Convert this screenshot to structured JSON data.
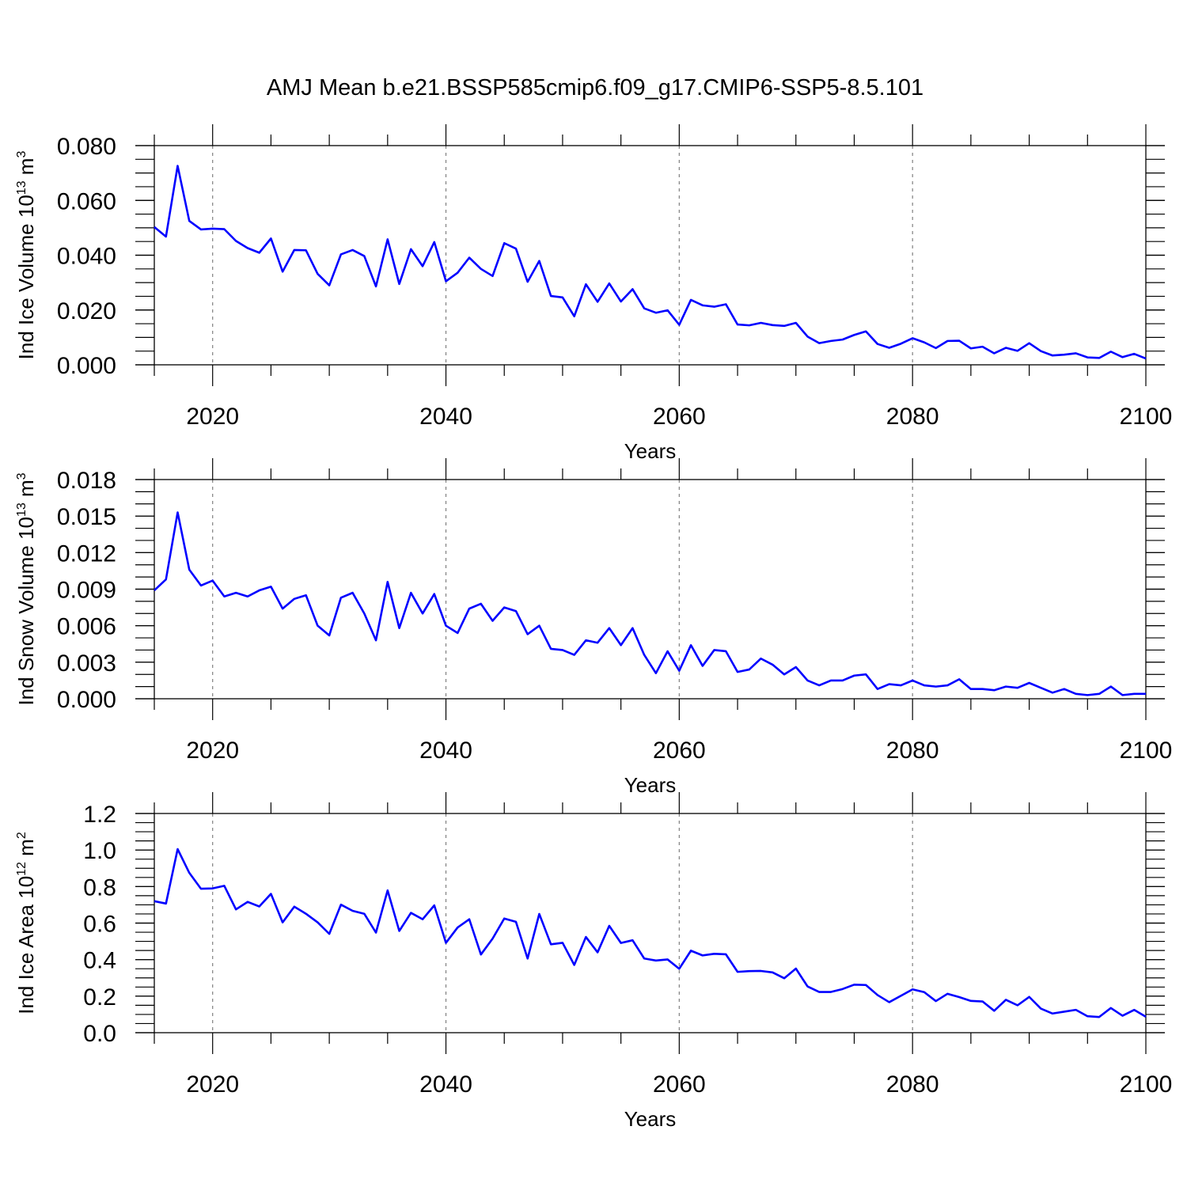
{
  "title": "AMJ Mean b.e21.BSSP585cmip6.f09_g17.CMIP6-SSP5-8.5.101",
  "line_color": "#0000ff",
  "chart_data": [
    {
      "type": "line",
      "ylabel": "Ind Ice Volume 10",
      "ylabel_sup": "13",
      "ylabel_unit": " m",
      "ylabel_unit_sup": "3",
      "xlabel": "Years",
      "xlim": [
        2015,
        2100
      ],
      "ylim": [
        0.0,
        0.08
      ],
      "x_ticks": [
        2020,
        2040,
        2060,
        2080,
        2100
      ],
      "x_tick_labels": [
        "2020",
        "2040",
        "2060",
        "2080",
        "2100"
      ],
      "y_ticks": [
        0.0,
        0.02,
        0.04,
        0.06,
        0.08
      ],
      "y_tick_labels": [
        "0.000",
        "0.020",
        "0.040",
        "0.060",
        "0.080"
      ],
      "y_minor_step": 0.005,
      "series": [
        {
          "x_start": 2015,
          "values": [
            0.0503,
            0.0468,
            0.0726,
            0.0525,
            0.0494,
            0.0497,
            0.0495,
            0.0452,
            0.0426,
            0.0409,
            0.0461,
            0.034,
            0.0419,
            0.0418,
            0.0332,
            0.029,
            0.0403,
            0.0419,
            0.0397,
            0.0286,
            0.0458,
            0.0295,
            0.0422,
            0.036,
            0.0448,
            0.0305,
            0.0336,
            0.0391,
            0.035,
            0.0324,
            0.0444,
            0.0424,
            0.0303,
            0.0379,
            0.0251,
            0.0246,
            0.0177,
            0.0294,
            0.023,
            0.0297,
            0.0231,
            0.0276,
            0.0206,
            0.019,
            0.0199,
            0.0146,
            0.0237,
            0.0217,
            0.0212,
            0.0221,
            0.0147,
            0.0144,
            0.0153,
            0.0145,
            0.0142,
            0.0153,
            0.0103,
            0.0079,
            0.0087,
            0.0092,
            0.0109,
            0.0122,
            0.0076,
            0.0062,
            0.0077,
            0.0097,
            0.0082,
            0.0061,
            0.0087,
            0.0088,
            0.006,
            0.0066,
            0.0042,
            0.0062,
            0.0051,
            0.0079,
            0.005,
            0.0034,
            0.0037,
            0.0042,
            0.0027,
            0.0025,
            0.0048,
            0.0028,
            0.004,
            0.0023
          ]
        }
      ]
    },
    {
      "type": "line",
      "ylabel": "Ind Snow Volume 10",
      "ylabel_sup": "13",
      "ylabel_unit": " m",
      "ylabel_unit_sup": "3",
      "xlabel": "Years",
      "xlim": [
        2015,
        2100
      ],
      "ylim": [
        0.0,
        0.018
      ],
      "x_ticks": [
        2020,
        2040,
        2060,
        2080,
        2100
      ],
      "x_tick_labels": [
        "2020",
        "2040",
        "2060",
        "2080",
        "2100"
      ],
      "y_ticks": [
        0.0,
        0.003,
        0.006,
        0.009,
        0.012,
        0.015,
        0.018
      ],
      "y_tick_labels": [
        "0.000",
        "0.003",
        "0.006",
        "0.009",
        "0.012",
        "0.015",
        "0.018"
      ],
      "y_minor_step": 0.001,
      "series": [
        {
          "x_start": 2015,
          "values": [
            0.0089,
            0.0098,
            0.0153,
            0.0106,
            0.0093,
            0.0097,
            0.0084,
            0.0087,
            0.0084,
            0.0089,
            0.0092,
            0.0074,
            0.0082,
            0.0085,
            0.006,
            0.0052,
            0.0083,
            0.0087,
            0.007,
            0.0048,
            0.0096,
            0.0058,
            0.0087,
            0.007,
            0.0086,
            0.006,
            0.0054,
            0.0074,
            0.0078,
            0.0064,
            0.0075,
            0.0072,
            0.0053,
            0.006,
            0.0041,
            0.004,
            0.0036,
            0.0048,
            0.0046,
            0.0058,
            0.0044,
            0.0058,
            0.0036,
            0.0021,
            0.0039,
            0.0023,
            0.0044,
            0.0027,
            0.004,
            0.0039,
            0.0022,
            0.0024,
            0.0033,
            0.0028,
            0.002,
            0.0026,
            0.0015,
            0.0011,
            0.0015,
            0.0015,
            0.0019,
            0.002,
            0.0008,
            0.0012,
            0.0011,
            0.0015,
            0.0011,
            0.001,
            0.0011,
            0.0016,
            0.0008,
            0.0008,
            0.0007,
            0.001,
            0.0009,
            0.0013,
            0.0009,
            0.0005,
            0.0008,
            0.0004,
            0.0003,
            0.0004,
            0.001,
            0.0003,
            0.0004,
            0.0004
          ]
        }
      ]
    },
    {
      "type": "line",
      "ylabel": "Ind Ice Area 10",
      "ylabel_sup": "12",
      "ylabel_unit": " m",
      "ylabel_unit_sup": "2",
      "xlabel": "Years",
      "xlim": [
        2015,
        2100
      ],
      "ylim": [
        0.0,
        1.2
      ],
      "x_ticks": [
        2020,
        2040,
        2060,
        2080,
        2100
      ],
      "x_tick_labels": [
        "2020",
        "2040",
        "2060",
        "2080",
        "2100"
      ],
      "y_ticks": [
        0.0,
        0.2,
        0.4,
        0.6,
        0.8,
        1.0,
        1.2
      ],
      "y_tick_labels": [
        "0.0",
        "0.2",
        "0.4",
        "0.6",
        "0.8",
        "1.0",
        "1.2"
      ],
      "y_minor_step": 0.05,
      "series": [
        {
          "x_start": 2015,
          "values": [
            0.72,
            0.707,
            1.005,
            0.875,
            0.788,
            0.79,
            0.804,
            0.675,
            0.716,
            0.691,
            0.76,
            0.604,
            0.69,
            0.651,
            0.604,
            0.541,
            0.701,
            0.667,
            0.651,
            0.548,
            0.779,
            0.557,
            0.656,
            0.621,
            0.697,
            0.492,
            0.576,
            0.621,
            0.428,
            0.515,
            0.625,
            0.607,
            0.406,
            0.65,
            0.484,
            0.492,
            0.371,
            0.524,
            0.44,
            0.585,
            0.491,
            0.506,
            0.406,
            0.395,
            0.401,
            0.35,
            0.449,
            0.423,
            0.432,
            0.429,
            0.333,
            0.337,
            0.338,
            0.33,
            0.298,
            0.351,
            0.253,
            0.223,
            0.223,
            0.239,
            0.263,
            0.261,
            0.206,
            0.167,
            0.202,
            0.237,
            0.222,
            0.173,
            0.213,
            0.195,
            0.174,
            0.171,
            0.12,
            0.18,
            0.15,
            0.196,
            0.132,
            0.105,
            0.115,
            0.125,
            0.09,
            0.086,
            0.135,
            0.093,
            0.125,
            0.087
          ]
        }
      ]
    }
  ]
}
